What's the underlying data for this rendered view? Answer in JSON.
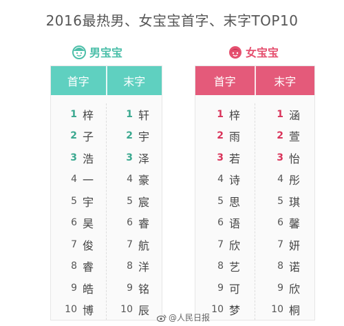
{
  "title": "2016最热男、女宝宝首字、末字TOP10",
  "boy": {
    "label": "男宝宝",
    "color": "#5fd0c0",
    "col1_header": "首字",
    "col2_header": "末字",
    "first": [
      {
        "n": "1",
        "c": "梓"
      },
      {
        "n": "2",
        "c": "子"
      },
      {
        "n": "3",
        "c": "浩"
      },
      {
        "n": "4",
        "c": "一"
      },
      {
        "n": "5",
        "c": "宇"
      },
      {
        "n": "6",
        "c": "昊"
      },
      {
        "n": "7",
        "c": "俊"
      },
      {
        "n": "8",
        "c": "睿"
      },
      {
        "n": "9",
        "c": "皓"
      },
      {
        "n": "10",
        "c": "博"
      }
    ],
    "last": [
      {
        "n": "1",
        "c": "轩"
      },
      {
        "n": "2",
        "c": "宇"
      },
      {
        "n": "3",
        "c": "泽"
      },
      {
        "n": "4",
        "c": "豪"
      },
      {
        "n": "5",
        "c": "宸"
      },
      {
        "n": "6",
        "c": "睿"
      },
      {
        "n": "7",
        "c": "航"
      },
      {
        "n": "8",
        "c": "洋"
      },
      {
        "n": "9",
        "c": "铭"
      },
      {
        "n": "10",
        "c": "辰"
      }
    ]
  },
  "girl": {
    "label": "女宝宝",
    "color": "#e45a7a",
    "col1_header": "首字",
    "col2_header": "末字",
    "first": [
      {
        "n": "1",
        "c": "梓"
      },
      {
        "n": "2",
        "c": "雨"
      },
      {
        "n": "3",
        "c": "若"
      },
      {
        "n": "4",
        "c": "诗"
      },
      {
        "n": "5",
        "c": "思"
      },
      {
        "n": "6",
        "c": "语"
      },
      {
        "n": "7",
        "c": "欣"
      },
      {
        "n": "8",
        "c": "艺"
      },
      {
        "n": "9",
        "c": "可"
      },
      {
        "n": "10",
        "c": "梦"
      }
    ],
    "last": [
      {
        "n": "1",
        "c": "涵"
      },
      {
        "n": "2",
        "c": "萱"
      },
      {
        "n": "3",
        "c": "怡"
      },
      {
        "n": "4",
        "c": "彤"
      },
      {
        "n": "5",
        "c": "琪"
      },
      {
        "n": "6",
        "c": "馨"
      },
      {
        "n": "7",
        "c": "妍"
      },
      {
        "n": "8",
        "c": "诺"
      },
      {
        "n": "9",
        "c": "欣"
      },
      {
        "n": "10",
        "c": "桐"
      }
    ]
  },
  "watermark": "@人民日报"
}
